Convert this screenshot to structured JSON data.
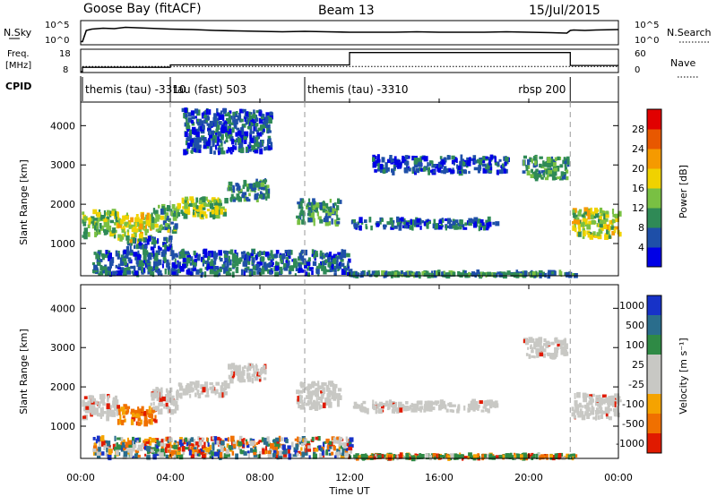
{
  "header": {
    "station": "Goose Bay (fitACF)",
    "beam": "Beam 13",
    "date": "15/Jul/2015"
  },
  "colors": {
    "power": [
      "#0000e6",
      "#1e4fa8",
      "#2f8a56",
      "#79c043",
      "#f0d200",
      "#f59a00",
      "#e85800",
      "#e10000"
    ],
    "velocity": [
      "#1732c8",
      "#2a6d8c",
      "#2f8a45",
      "#c8c8c4",
      "#c8c8c4",
      "#f5a300",
      "#f07000",
      "#e01a00"
    ],
    "ground_scatter": "#c8c8c4",
    "guide": "#999999"
  },
  "chart_data": [
    {
      "type": "line",
      "panel": "N.Sky / N.Search",
      "ylabel_left": "N.Sky",
      "ylabel_right": "N.Search",
      "left_ticks": [
        "10^5",
        "10^0"
      ],
      "right_ticks": [
        "10^5",
        "10^0"
      ],
      "x": [
        0,
        0.08,
        0.25,
        0.5,
        1,
        1.5,
        2,
        2.5,
        3,
        4,
        5,
        6,
        7,
        8,
        9,
        10,
        11,
        12,
        13,
        14,
        15,
        16,
        17,
        18,
        19,
        20,
        21,
        21.7,
        21.85,
        22,
        22.5,
        23,
        24
      ],
      "series": [
        {
          "name": "N.Sky",
          "values": [
            0.5,
            0.5,
            3.0,
            3.3,
            3.5,
            3.4,
            3.7,
            3.6,
            3.5,
            3.3,
            3.2,
            3.0,
            2.9,
            2.8,
            2.7,
            2.8,
            2.7,
            2.6,
            2.6,
            2.6,
            2.7,
            2.6,
            2.6,
            2.6,
            2.7,
            2.6,
            2.5,
            2.4,
            3.0,
            3.1,
            3.0,
            3.1,
            3.2
          ]
        }
      ],
      "ylim": [
        0,
        5
      ]
    },
    {
      "type": "line",
      "panel": "Freq. / Nave",
      "ylabel_left": "Freq. [MHz]",
      "ylabel_right": "Nave",
      "left_ticks": [
        "18",
        "8"
      ],
      "right_ticks": [
        "60",
        "0"
      ],
      "x": [
        0,
        0.08,
        0.08,
        4,
        4,
        12,
        12,
        21.85,
        21.85,
        24
      ],
      "series": [
        {
          "name": "Nave",
          "values": [
            0,
            0,
            14,
            14,
            22,
            22,
            62,
            62,
            20,
            20
          ]
        }
      ],
      "freq_mhz": 10.4,
      "ylim": [
        0,
        70
      ]
    },
    {
      "type": "table",
      "panel": "CPID",
      "label": "CPID",
      "segments": [
        {
          "start": 0.08,
          "end": 4.0,
          "text": "themis (tau) -3310"
        },
        {
          "start": 4.0,
          "end": 10.0,
          "text": "tau (fast) 503"
        },
        {
          "start": 10.0,
          "end": 21.85,
          "text": "themis (tau) -3310"
        },
        {
          "start": 21.85,
          "end": 24,
          "text": "rbsp 200"
        }
      ]
    },
    {
      "type": "heatmap",
      "panel": "Power",
      "ylabel": "Slant Range [km]",
      "xlim": [
        0,
        24
      ],
      "ylim": [
        180,
        4600
      ],
      "yticks": [
        "1000",
        "2000",
        "3000",
        "4000"
      ],
      "colorbar": {
        "label": "Power [dB]",
        "ticks": [
          "4",
          "8",
          "12",
          "16",
          "20",
          "24",
          "28"
        ],
        "range": [
          0,
          32
        ]
      },
      "regions": [
        {
          "x0": 0.05,
          "x1": 1.6,
          "r0": 1180,
          "r1": 1820,
          "value": 13
        },
        {
          "x0": 1.6,
          "x1": 3.1,
          "r0": 1050,
          "r1": 1750,
          "value": 17
        },
        {
          "x0": 3.1,
          "x1": 4.3,
          "r0": 1300,
          "r1": 1950,
          "value": 12
        },
        {
          "x0": 2.0,
          "x1": 4.0,
          "r0": 850,
          "r1": 1150,
          "value": 6
        },
        {
          "x0": 4.3,
          "x1": 6.5,
          "r0": 1650,
          "r1": 2150,
          "value": 14
        },
        {
          "x0": 6.5,
          "x1": 8.3,
          "r0": 2100,
          "r1": 2600,
          "value": 9
        },
        {
          "x0": 9.6,
          "x1": 11.5,
          "r0": 1500,
          "r1": 2100,
          "value": 10
        },
        {
          "x0": 12.0,
          "x1": 18.5,
          "r0": 1380,
          "r1": 1620,
          "value": 6
        },
        {
          "x0": 19.7,
          "x1": 21.7,
          "r0": 2650,
          "r1": 3200,
          "value": 11
        },
        {
          "x0": 21.9,
          "x1": 24.0,
          "r0": 1150,
          "r1": 1850,
          "value": 16
        },
        {
          "x0": 4.5,
          "x1": 8.5,
          "r0": 3300,
          "r1": 4400,
          "value": 6
        },
        {
          "x0": 13.0,
          "x1": 19.0,
          "r0": 2800,
          "r1": 3200,
          "value": 5
        },
        {
          "x0": 0.5,
          "x1": 12.0,
          "r0": 200,
          "r1": 800,
          "value": 7
        },
        {
          "x0": 12.0,
          "x1": 22.0,
          "r0": 180,
          "r1": 260,
          "value": 9
        }
      ]
    },
    {
      "type": "heatmap",
      "panel": "Velocity",
      "ylabel": "Slant Range [km]",
      "xlabel": "Time UT",
      "xlim": [
        0,
        24
      ],
      "ylim": [
        180,
        4600
      ],
      "yticks": [
        "1000",
        "2000",
        "3000",
        "4000"
      ],
      "xticks": [
        "00:00",
        "04:00",
        "08:00",
        "12:00",
        "16:00",
        "20:00",
        "00:00"
      ],
      "colorbar": {
        "label": "Velocity [m s⁻¹]",
        "ticks": [
          "1000",
          "500",
          "100",
          "25",
          "-25",
          "-100",
          "-500",
          "-1000"
        ]
      },
      "regions": [
        {
          "x0": 0.05,
          "x1": 1.6,
          "r0": 1200,
          "r1": 1800,
          "value": 0
        },
        {
          "x0": 1.6,
          "x1": 3.3,
          "r0": 1050,
          "r1": 1500,
          "value": -500
        },
        {
          "x0": 3.1,
          "x1": 4.3,
          "r0": 1350,
          "r1": 1950,
          "value": 0
        },
        {
          "x0": 4.3,
          "x1": 6.5,
          "r0": 1750,
          "r1": 2100,
          "value": 0
        },
        {
          "x0": 6.5,
          "x1": 8.3,
          "r0": 2150,
          "r1": 2550,
          "value": 0
        },
        {
          "x0": 9.6,
          "x1": 11.5,
          "r0": 1450,
          "r1": 2100,
          "value": 0
        },
        {
          "x0": 12.0,
          "x1": 18.5,
          "r0": 1380,
          "r1": 1620,
          "value": 0
        },
        {
          "x0": 19.7,
          "x1": 21.7,
          "r0": 2750,
          "r1": 3200,
          "value": 0
        },
        {
          "x0": 21.9,
          "x1": 24.0,
          "r0": 1200,
          "r1": 1800,
          "value": 0
        },
        {
          "x0": 0.5,
          "x1": 12.0,
          "r0": 200,
          "r1": 700,
          "value": -100
        },
        {
          "x0": 12.0,
          "x1": 22.0,
          "r0": 180,
          "r1": 260,
          "value": 100
        }
      ]
    }
  ]
}
